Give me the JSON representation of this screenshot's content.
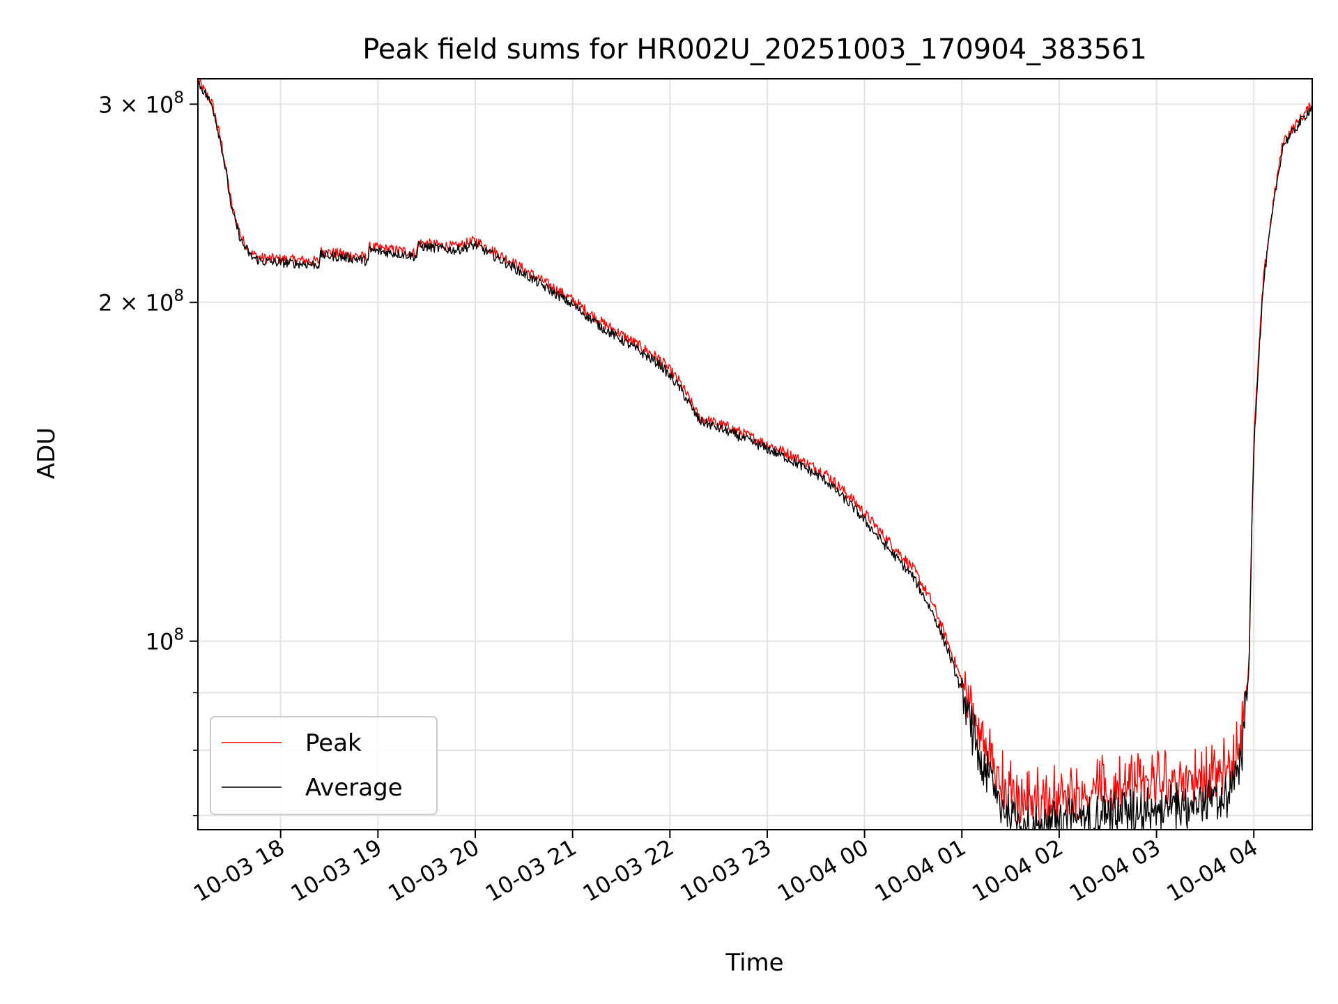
{
  "chart_data": {
    "type": "line",
    "title": "Peak field sums for HR002U_20251003_170904_383561",
    "xlabel": "Time",
    "ylabel": "ADU",
    "yscale": "log",
    "ylim": [
      68000000,
      316000000
    ],
    "xlim_hours": [
      17.15,
      28.6
    ],
    "grid": true,
    "legend_position": "lower-left",
    "x_ticks": [
      {
        "value": 18,
        "label": "10-03 18"
      },
      {
        "value": 19,
        "label": "10-03 19"
      },
      {
        "value": 20,
        "label": "10-03 20"
      },
      {
        "value": 21,
        "label": "10-03 21"
      },
      {
        "value": 22,
        "label": "10-03 22"
      },
      {
        "value": 23,
        "label": "10-03 23"
      },
      {
        "value": 24,
        "label": "10-04 00"
      },
      {
        "value": 25,
        "label": "10-04 01"
      },
      {
        "value": 26,
        "label": "10-04 02"
      },
      {
        "value": 27,
        "label": "10-04 03"
      },
      {
        "value": 28,
        "label": "10-04 04"
      }
    ],
    "y_major_ticks": [
      {
        "value": 100000000,
        "mantissa": "10",
        "exponent": "8"
      },
      {
        "value": 200000000,
        "mantissa": "2 × 10",
        "exponent": "8"
      },
      {
        "value": 300000000,
        "mantissa": "3 × 10",
        "exponent": "8"
      }
    ],
    "y_minor_ticks": [
      70000000,
      80000000,
      90000000
    ],
    "series": [
      {
        "name": "Peak",
        "color": "#ff0000",
        "noise": 0.012,
        "spikes": 0.045,
        "x": [
          17.15,
          17.3,
          17.4,
          17.5,
          17.6,
          17.7,
          17.8,
          18.0,
          18.2,
          18.4,
          18.41,
          18.6,
          18.8,
          18.9,
          18.91,
          19.1,
          19.3,
          19.4,
          19.41,
          19.6,
          19.8,
          20.0,
          20.5,
          21.0,
          21.3,
          21.6,
          21.9,
          22.1,
          22.3,
          22.6,
          22.9,
          23.2,
          23.6,
          23.9,
          24.2,
          24.5,
          24.7,
          24.85,
          25.0,
          25.2,
          25.4,
          25.55,
          25.7,
          25.85,
          26.0,
          26.5,
          27.0,
          27.3,
          27.6,
          27.75,
          27.85,
          27.95,
          28.0,
          28.1,
          28.2,
          28.3,
          28.45,
          28.6
        ],
        "values": [
          315000000,
          300000000,
          275000000,
          243000000,
          228000000,
          221000000,
          219000000,
          218500000,
          218000000,
          217500000,
          222000000,
          221000000,
          220000000,
          219000000,
          224000000,
          223000000,
          222000000,
          221000000,
          226000000,
          225000000,
          224000000,
          227000000,
          214000000,
          201000000,
          192000000,
          185000000,
          178000000,
          170000000,
          158000000,
          155000000,
          151000000,
          147000000,
          141000000,
          133000000,
          124000000,
          116000000,
          108000000,
          100000000,
          92000000,
          81000000,
          74000000,
          71500000,
          71000000,
          71500000,
          72000000,
          73000000,
          74000000,
          74500000,
          75000000,
          76000000,
          79000000,
          95000000,
          150000000,
          210000000,
          245000000,
          278000000,
          289000000,
          300000000
        ]
      },
      {
        "name": "Average",
        "color": "#000000",
        "noise": 0.01,
        "spikes": 0.035,
        "x": [
          17.15,
          17.3,
          17.4,
          17.5,
          17.6,
          17.7,
          17.8,
          18.0,
          18.2,
          18.4,
          18.41,
          18.6,
          18.8,
          18.9,
          18.91,
          19.1,
          19.3,
          19.4,
          19.41,
          19.6,
          19.8,
          20.0,
          20.5,
          21.0,
          21.3,
          21.6,
          21.9,
          22.1,
          22.3,
          22.6,
          22.9,
          23.2,
          23.6,
          23.9,
          24.2,
          24.5,
          24.7,
          24.85,
          25.0,
          25.2,
          25.4,
          25.55,
          25.7,
          25.85,
          26.0,
          26.5,
          27.0,
          27.3,
          27.6,
          27.75,
          27.85,
          27.95,
          28.0,
          28.1,
          28.2,
          28.3,
          28.45,
          28.6
        ],
        "values": [
          314000000,
          299000000,
          273000000,
          241000000,
          226000000,
          219500000,
          217500000,
          217000000,
          216500000,
          216000000,
          220500000,
          219500000,
          218500000,
          217500000,
          222500000,
          221500000,
          220500000,
          219500000,
          224500000,
          223500000,
          222500000,
          225000000,
          212000000,
          199000000,
          190000000,
          183000000,
          176000000,
          168000000,
          157000000,
          153500000,
          149500000,
          145500000,
          139000000,
          131000000,
          122000000,
          114000000,
          106000000,
          98500000,
          90000000,
          79500000,
          72000000,
          69500000,
          69000000,
          69500000,
          70000000,
          71000000,
          72000000,
          72500000,
          73000000,
          74000000,
          77000000,
          93000000,
          148000000,
          208000000,
          243000000,
          276000000,
          287000000,
          298500000
        ]
      }
    ]
  }
}
